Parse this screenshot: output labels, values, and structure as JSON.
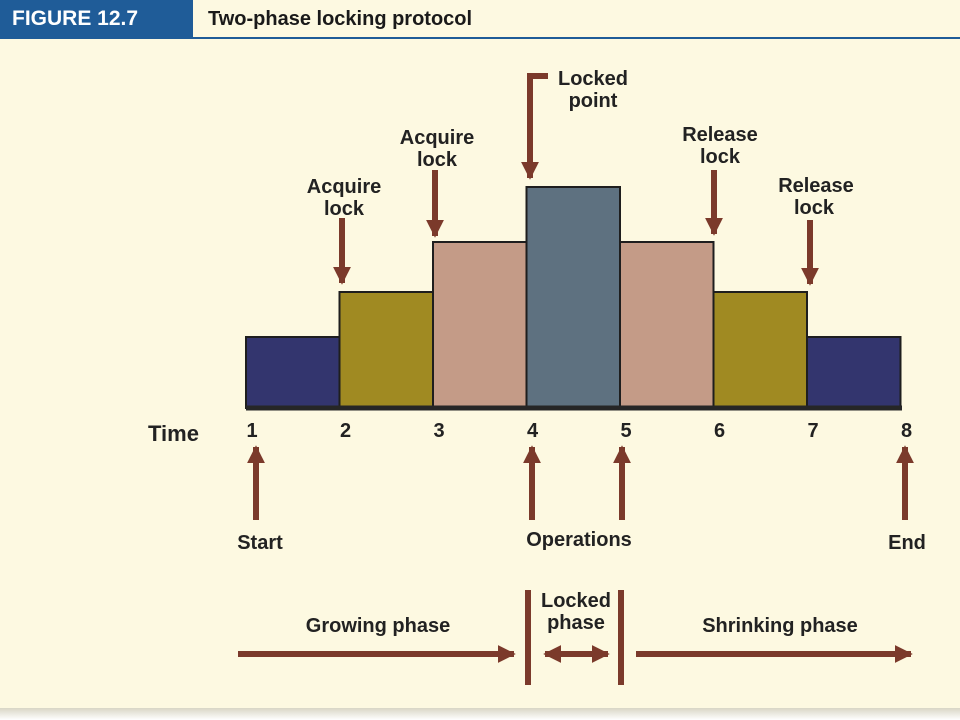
{
  "figure": {
    "label": "FIGURE 12.7",
    "title": "Two-phase locking protocol"
  },
  "time_label": "Time",
  "ticks": [
    "1",
    "2",
    "3",
    "4",
    "5",
    "6",
    "7",
    "8"
  ],
  "steps": [
    {
      "level": 1,
      "color": "#33356e"
    },
    {
      "level": 2,
      "color": "#a08a22"
    },
    {
      "level": 3,
      "color": "#c49b87"
    },
    {
      "level": 4,
      "color": "#5e7180"
    },
    {
      "level": 3,
      "color": "#c49b87"
    },
    {
      "level": 2,
      "color": "#a08a22"
    },
    {
      "level": 1,
      "color": "#33356e"
    }
  ],
  "top_labels": {
    "acquire_1": [
      "Acquire",
      "lock"
    ],
    "acquire_2": [
      "Acquire",
      "lock"
    ],
    "locked_point": [
      "Locked",
      "point"
    ],
    "release_1": [
      "Release",
      "lock"
    ],
    "release_2": [
      "Release",
      "lock"
    ]
  },
  "bottom_labels": {
    "start": "Start",
    "operations": "Operations",
    "end": "End"
  },
  "phases": {
    "growing": "Growing phase",
    "locked": [
      "Locked",
      "phase"
    ],
    "shrinking": "Shrinking phase"
  },
  "colors": {
    "arrow": "#7b3a2b",
    "baseline": "#262626"
  }
}
